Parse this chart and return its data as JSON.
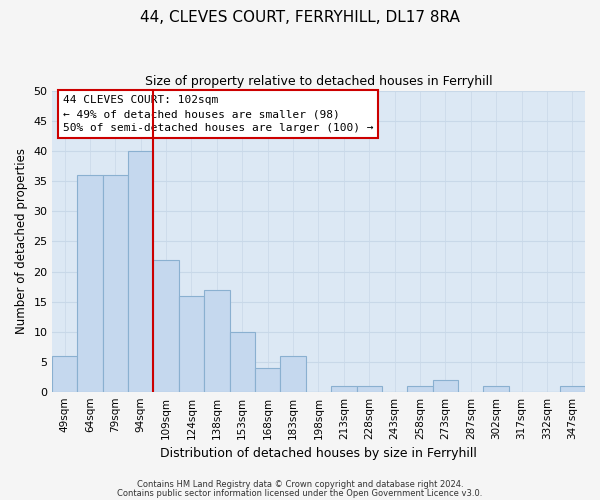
{
  "title": "44, CLEVES COURT, FERRYHILL, DL17 8RA",
  "subtitle": "Size of property relative to detached houses in Ferryhill",
  "xlabel": "Distribution of detached houses by size in Ferryhill",
  "ylabel": "Number of detached properties",
  "bar_labels": [
    "49sqm",
    "64sqm",
    "79sqm",
    "94sqm",
    "109sqm",
    "124sqm",
    "138sqm",
    "153sqm",
    "168sqm",
    "183sqm",
    "198sqm",
    "213sqm",
    "228sqm",
    "243sqm",
    "258sqm",
    "273sqm",
    "287sqm",
    "302sqm",
    "317sqm",
    "332sqm",
    "347sqm"
  ],
  "bar_values": [
    6,
    36,
    36,
    40,
    22,
    16,
    17,
    10,
    4,
    6,
    0,
    1,
    1,
    0,
    1,
    2,
    0,
    1,
    0,
    0,
    1
  ],
  "bar_color": "#c5d8ee",
  "bar_edge_color": "#8ab0d0",
  "ylim": [
    0,
    50
  ],
  "yticks": [
    0,
    5,
    10,
    15,
    20,
    25,
    30,
    35,
    40,
    45,
    50
  ],
  "vline_color": "#cc0000",
  "annotation_title": "44 CLEVES COURT: 102sqm",
  "annotation_line1": "← 49% of detached houses are smaller (98)",
  "annotation_line2": "50% of semi-detached houses are larger (100) →",
  "annotation_box_facecolor": "#ffffff",
  "annotation_box_edgecolor": "#cc0000",
  "footnote1": "Contains HM Land Registry data © Crown copyright and database right 2024.",
  "footnote2": "Contains public sector information licensed under the Open Government Licence v3.0.",
  "grid_color": "#c8d8e8",
  "plot_bg_color": "#dce8f4",
  "fig_bg_color": "#f5f5f5"
}
